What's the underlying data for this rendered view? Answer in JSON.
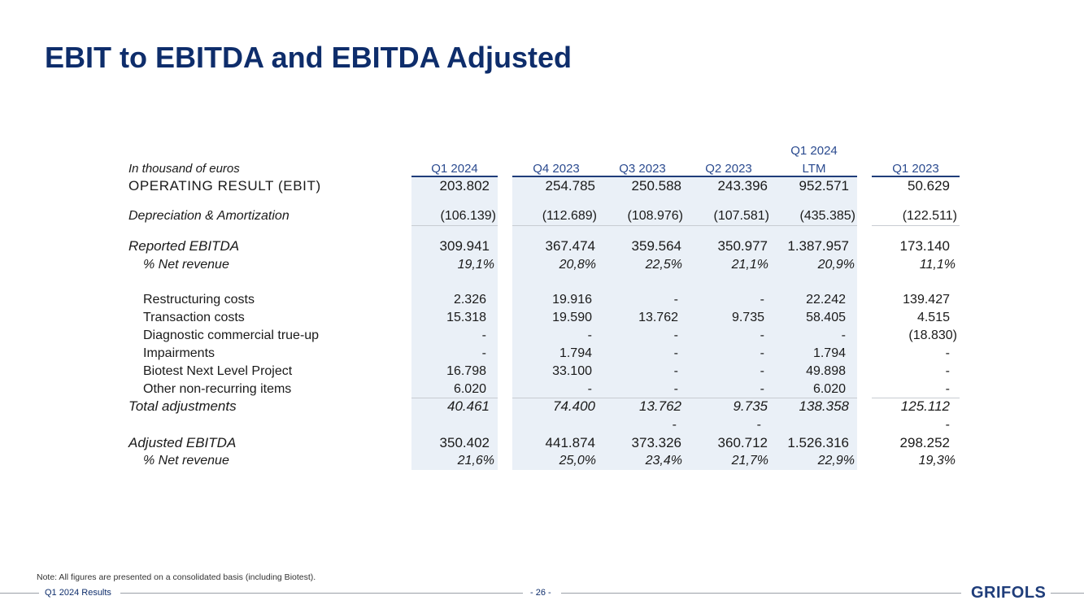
{
  "title": "EBIT to EBITDA and EBITDA Adjusted",
  "table": {
    "unit_label": "In thousand of euros",
    "columns": [
      "Q1 2024",
      "Q4 2023",
      "Q3 2023",
      "Q2 2023",
      "Q1 2024\nLTM",
      "Q1 2023"
    ],
    "col_q1_2024": "Q1 2024",
    "col_q4_2023": "Q4 2023",
    "col_q3_2023": "Q3 2023",
    "col_q2_2023": "Q2 2023",
    "col_ltm_1": "Q1 2024",
    "col_ltm_2": "LTM",
    "col_q1_2023": "Q1 2023",
    "rows": [
      {
        "label": "OPERATING RESULT (EBIT)",
        "values": [
          "203.802",
          "254.785",
          "250.588",
          "243.396",
          "952.571",
          "50.629"
        ]
      },
      {
        "label": "Depreciation & Amortization",
        "values": [
          "(106.139)",
          "(112.689)",
          "(108.976)",
          "(107.581)",
          "(435.385)",
          "(122.511)"
        ]
      },
      {
        "label": "Reported EBITDA",
        "values": [
          "309.941",
          "367.474",
          "359.564",
          "350.977",
          "1.387.957",
          "173.140"
        ]
      },
      {
        "label": "% Net revenue",
        "values": [
          "19,1%",
          "20,8%",
          "22,5%",
          "21,1%",
          "20,9%",
          "11,1%"
        ]
      },
      {
        "label": "Restructuring costs",
        "values": [
          "2.326",
          "19.916",
          "-",
          "-",
          "22.242",
          "139.427"
        ]
      },
      {
        "label": "Transaction costs",
        "values": [
          "15.318",
          "19.590",
          "13.762",
          "9.735",
          "58.405",
          "4.515"
        ]
      },
      {
        "label": "Diagnostic commercial true-up",
        "values": [
          "-",
          "-",
          "-",
          "-",
          "-",
          "(18.830)"
        ]
      },
      {
        "label": "Impairments",
        "values": [
          "-",
          "1.794",
          "-",
          "-",
          "1.794",
          "-"
        ]
      },
      {
        "label": "Biotest Next Level Project",
        "values": [
          "16.798",
          "33.100",
          "-",
          "-",
          "49.898",
          "-"
        ]
      },
      {
        "label": "Other non-recurring items",
        "values": [
          "6.020",
          "-",
          "-",
          "-",
          "6.020",
          "-"
        ]
      },
      {
        "label": "Total adjustments",
        "values": [
          "40.461",
          "74.400",
          "13.762",
          "9.735",
          "138.358",
          "125.112"
        ]
      },
      {
        "label": "",
        "values": [
          "",
          "",
          "-",
          "-",
          "",
          "-"
        ]
      },
      {
        "label": "Adjusted EBITDA",
        "values": [
          "350.402",
          "441.874",
          "373.326",
          "360.712",
          "1.526.316",
          "298.252"
        ]
      },
      {
        "label": "% Net revenue",
        "values": [
          "21,6%",
          "25,0%",
          "23,4%",
          "21,7%",
          "22,9%",
          "19,3%"
        ]
      }
    ]
  },
  "note": "Note: All figures are presented on a consolidated basis (including Biotest).",
  "footer": {
    "left": "Q1 2024 Results",
    "page": "- 26 -",
    "logo": "GRIFOLS"
  },
  "colors": {
    "title": "#0e2d6b",
    "header": "#2a4a8f",
    "shade": "#eaf0f7"
  }
}
